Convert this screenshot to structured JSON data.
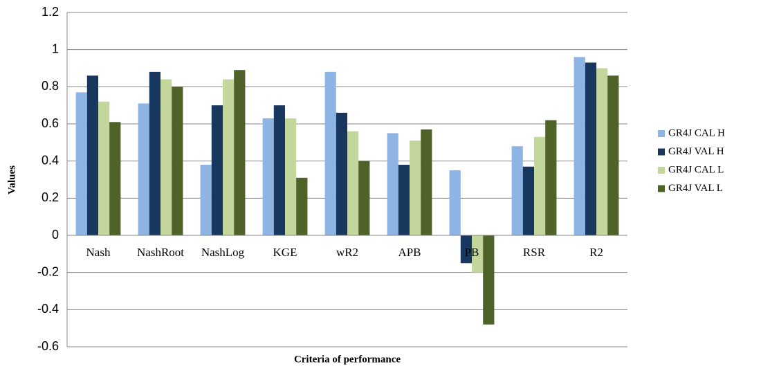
{
  "chart_data": {
    "type": "bar",
    "x_label": "Criteria of performance",
    "y_label": "Values",
    "categories": [
      "Nash",
      "NashRoot",
      "NashLog",
      "KGE",
      "wR2",
      "APB",
      "PB",
      "RSR",
      "R2"
    ],
    "series": [
      {
        "name": "GR4J CAL H",
        "color": "#8db4e2",
        "values": [
          0.77,
          0.71,
          0.38,
          0.63,
          0.88,
          0.55,
          0.35,
          0.48,
          0.96
        ]
      },
      {
        "name": "GR4J VAL H",
        "color": "#17375e",
        "values": [
          0.86,
          0.88,
          0.7,
          0.7,
          0.66,
          0.38,
          -0.15,
          0.37,
          0.93
        ]
      },
      {
        "name": "GR4J CAL L",
        "color": "#c3d69b",
        "values": [
          0.72,
          0.84,
          0.84,
          0.63,
          0.56,
          0.51,
          -0.2,
          0.53,
          0.9
        ]
      },
      {
        "name": "GR4J VAL L",
        "color": "#4f6228",
        "values": [
          0.61,
          0.8,
          0.89,
          0.31,
          0.4,
          0.57,
          -0.48,
          0.62,
          0.86
        ]
      }
    ],
    "ylim": [
      -0.6,
      1.2
    ],
    "yticks": [
      -0.6,
      -0.4,
      -0.2,
      0,
      0.2,
      0.4,
      0.6,
      0.8,
      1,
      1.2
    ],
    "grid": true,
    "legend": "right"
  }
}
